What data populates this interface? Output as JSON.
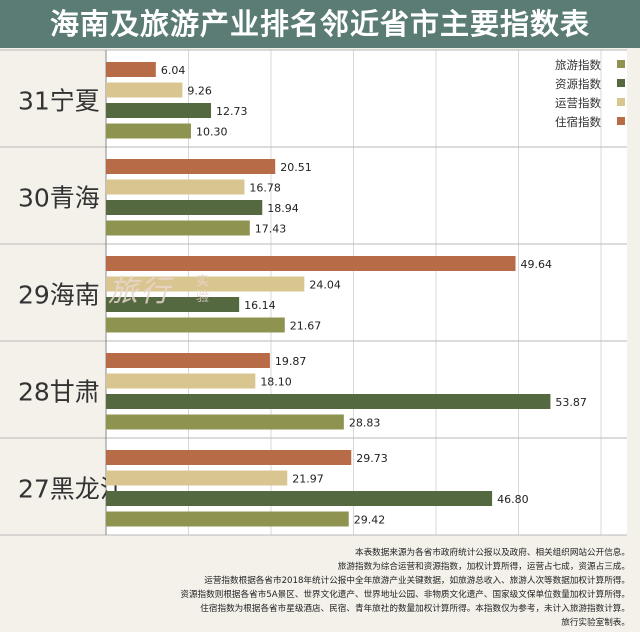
{
  "title": "海南及旅游产业排名邻近省市主要指数表",
  "chart_data": {
    "type": "bar",
    "orientation": "horizontal",
    "categories": [
      "31宁夏",
      "30青海",
      "29海南",
      "28甘肃",
      "27黑龙江"
    ],
    "series": [
      {
        "name": "住宿指数",
        "color": "#b86b47",
        "values": [
          6.04,
          20.51,
          49.64,
          19.87,
          29.73
        ]
      },
      {
        "name": "运营指数",
        "color": "#d9c58f",
        "values": [
          9.26,
          16.78,
          24.04,
          18.1,
          21.97
        ]
      },
      {
        "name": "资源指数",
        "color": "#54693f",
        "values": [
          12.73,
          18.94,
          16.14,
          53.87,
          46.8
        ]
      },
      {
        "name": "旅游指数",
        "color": "#8e9450",
        "values": [
          10.3,
          17.43,
          21.67,
          28.83,
          29.42
        ]
      }
    ],
    "value_labels": [
      [
        "6.04",
        "9.26",
        "12.73",
        "10.30"
      ],
      [
        "20.51",
        "16.78",
        "18.94",
        "17.43"
      ],
      [
        "49.64",
        "24.04",
        "16.14",
        "21.67"
      ],
      [
        "19.87",
        "18.10",
        "53.87",
        "28.83"
      ],
      [
        "29.73",
        "21.97",
        "46.80",
        "29.42"
      ]
    ],
    "legend": {
      "position": "top-right",
      "order": [
        "旅游指数",
        "资源指数",
        "运营指数",
        "住宿指数"
      ]
    },
    "xlim": [
      0,
      60
    ],
    "grid": true
  },
  "watermark": {
    "main": "旅行",
    "side": "实验"
  },
  "footnotes": [
    "本表数据来源为各省市政府统计公报以及政府、相关组织网站公开信息。",
    "旅游指数为综合运营和资源指数，加权计算所得，运营占七成，资源占三成。",
    "运营指数根据各省市2018年统计公报中全年旅游产业关键数据，如旅游总收入、旅游人次等数据加权计算所得。",
    "资源指数则根据各省市5A景区、世界文化遗产、世界地址公园、非物质文化遗产、国家级文保单位数量加权计算所得。",
    "住宿指数为根据各省市星级酒店、民宿、青年旅社的数量加权计算所得。本指数仅为参考，未计入旅游指数计算。",
    "旅行实验室制表。"
  ]
}
